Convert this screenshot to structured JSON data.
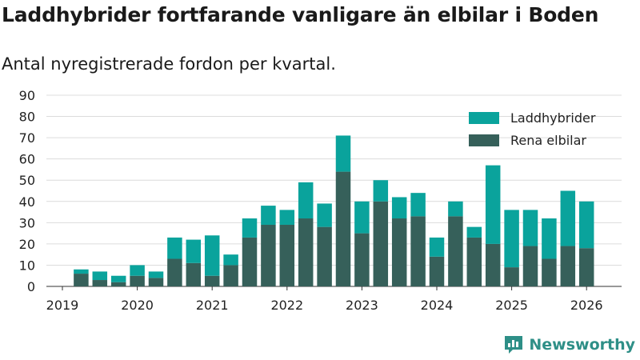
{
  "chart_data": {
    "type": "bar",
    "stacked": true,
    "title": "Laddhybrider fortfarande vanligare än elbilar i Boden",
    "subtitle": "Antal nyregistrerade fordon per kvartal.",
    "xlabel": "",
    "ylabel": "",
    "ylim": [
      0,
      90
    ],
    "yticks": [
      0,
      10,
      20,
      30,
      40,
      50,
      60,
      70,
      80,
      90
    ],
    "xticks": [
      "2019",
      "2020",
      "2021",
      "2022",
      "2023",
      "2024",
      "2025",
      "2026"
    ],
    "grid": true,
    "legend_position": "top-right",
    "categories": [
      "2019 Q2",
      "2019 Q3",
      "2019 Q4",
      "2020 Q1",
      "2020 Q2",
      "2020 Q3",
      "2020 Q4",
      "2021 Q1",
      "2021 Q2",
      "2021 Q3",
      "2021 Q4",
      "2022 Q1",
      "2022 Q2",
      "2022 Q3",
      "2022 Q4",
      "2023 Q1",
      "2023 Q2",
      "2023 Q3",
      "2023 Q4",
      "2024 Q1",
      "2024 Q2",
      "2024 Q3",
      "2024 Q4",
      "2025 Q1",
      "2025 Q2",
      "2025 Q3",
      "2025 Q4",
      "2026 Q1"
    ],
    "series": [
      {
        "name": "Rena elbilar",
        "color": "#36605a",
        "values": [
          6,
          3,
          2,
          5,
          4,
          13,
          11,
          5,
          10,
          23,
          29,
          29,
          32,
          28,
          54,
          25,
          40,
          32,
          33,
          14,
          33,
          23,
          20,
          9,
          19,
          13,
          19,
          18
        ]
      },
      {
        "name": "Laddhybrider",
        "color": "#0aa39c",
        "values": [
          2,
          4,
          3,
          5,
          3,
          10,
          11,
          19,
          5,
          9,
          9,
          7,
          17,
          11,
          17,
          15,
          10,
          10,
          11,
          9,
          7,
          5,
          37,
          27,
          17,
          19,
          26,
          22
        ]
      }
    ]
  },
  "brand": {
    "name": "Newsworthy",
    "icon": "bar-chart-logo-icon",
    "color": "#2e8f87"
  }
}
